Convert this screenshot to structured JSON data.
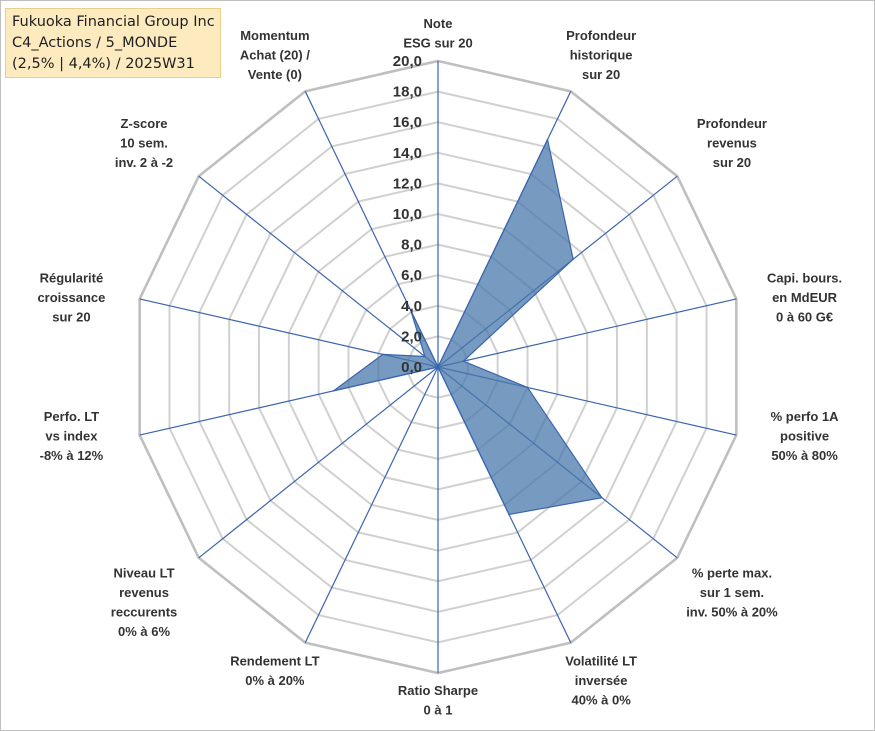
{
  "title_box": {
    "line1": "Fukuoka Financial Group Inc",
    "line2": "C4_Actions / 5_MONDE",
    "line3": "(2,5% | 4,4%) / 2025W31"
  },
  "colors": {
    "fill": "#4a78ab",
    "stroke": "#3a64b0",
    "grid": "#d0d0d0",
    "title_bg": "#fdebbf"
  },
  "chart_data": {
    "type": "radar",
    "rlim": [
      0,
      20
    ],
    "ticks": [
      "0,0",
      "2,0",
      "4,0",
      "6,0",
      "8,0",
      "10,0",
      "12,0",
      "14,0",
      "16,0",
      "18,0",
      "20,0"
    ],
    "grid": true,
    "axes": [
      {
        "label": [
          "Note",
          "ESG sur 20"
        ],
        "value": 0
      },
      {
        "label": [
          "Profondeur",
          "historique",
          "sur 20"
        ],
        "value": 16.5
      },
      {
        "label": [
          "Profondeur",
          "revenus",
          "sur 20"
        ],
        "value": 11.3
      },
      {
        "label": [
          "Capi. bours.",
          "en MdEUR",
          "0 à 60 G€"
        ],
        "value": 1.7
      },
      {
        "label": [
          "% perfo 1A",
          "positive",
          "50% à 80%"
        ],
        "value": 6.0
      },
      {
        "label": [
          "% perte max.",
          "sur 1 sem.",
          "inv. 50% à 20%"
        ],
        "value": 13.7
      },
      {
        "label": [
          "Volatilité LT",
          "inversée",
          "40% à 0%"
        ],
        "value": 10.7
      },
      {
        "label": [
          "Ratio Sharpe",
          "0 à 1"
        ],
        "value": 0
      },
      {
        "label": [
          "Rendement LT",
          "0% à 20%"
        ],
        "value": 0
      },
      {
        "label": [
          "Niveau LT",
          "revenus",
          "reccurents",
          "0% à 6%"
        ],
        "value": 0
      },
      {
        "label": [
          "Perfo. LT",
          "vs index",
          "-8% à 12%"
        ],
        "value": 7.0
      },
      {
        "label": [
          "Régularité",
          "croissance",
          "sur 20"
        ],
        "value": 3.7
      },
      {
        "label": [
          "Z-score",
          "10 sem.",
          "inv. 2 à -2"
        ],
        "value": 1.1
      },
      {
        "label": [
          "Momentum",
          "Achat (20) /",
          "Vente (0)"
        ],
        "value": 4.1
      }
    ]
  }
}
